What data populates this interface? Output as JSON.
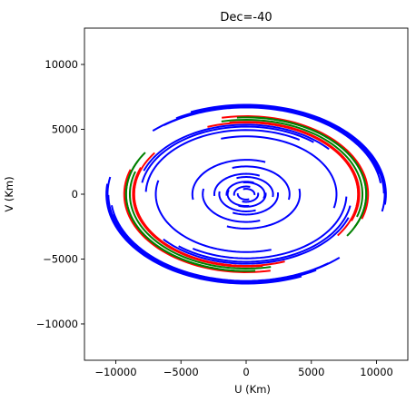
{
  "chart_data": {
    "type": "line",
    "title": "Dec=-40",
    "xlabel": "U (Km)",
    "ylabel": "V (Km)",
    "xlim": [
      -12400,
      12400
    ],
    "ylim": [
      -12800,
      12800
    ],
    "xticks": [
      -10000,
      -5000,
      0,
      5000,
      10000
    ],
    "xtick_labels": [
      "−10000",
      "−5000",
      "0",
      "5000",
      "10000"
    ],
    "yticks": [
      -10000,
      -5000,
      0,
      5000,
      10000
    ],
    "ytick_labels": [
      "−10000",
      "−5000",
      "0",
      "5000",
      "10000"
    ],
    "grid": false,
    "legend": "none",
    "colors": {
      "blue": "#0000ff",
      "red": "#ff0000",
      "green": "#008000",
      "axes": "#000000",
      "background": "#ffffff"
    },
    "projection": {
      "sin_dec": -0.643,
      "hour_angle_range_deg": [
        -60,
        60
      ]
    },
    "series": [
      {
        "color": "blue",
        "baselines": [
          [
            10000,
            3000,
            0
          ],
          [
            9600,
            4000,
            0
          ],
          [
            9200,
            5200,
            0
          ],
          [
            8600,
            6400,
            0
          ],
          [
            8000,
            7000,
            0
          ],
          [
            8200,
            -1500,
            0
          ],
          [
            7600,
            -2800,
            0
          ],
          [
            6800,
            -3600,
            0
          ],
          [
            5000,
            4800,
            0
          ],
          [
            3200,
            -2600,
            0
          ],
          [
            2500,
            2200,
            0
          ],
          [
            2000,
            -1400,
            0
          ],
          [
            1600,
            1300,
            0
          ],
          [
            1200,
            -900,
            0
          ],
          [
            900,
            1100,
            0
          ],
          [
            700,
            -600,
            0
          ],
          [
            500,
            400,
            0
          ]
        ]
      },
      {
        "color": "red",
        "baselines": [
          [
            6200,
            7000,
            0
          ],
          [
            6600,
            5500,
            0
          ],
          [
            3600,
            7800,
            0
          ],
          [
            5400,
            6800,
            0
          ]
        ]
      },
      {
        "color": "green",
        "baselines": [
          [
            5200,
            7600,
            0
          ],
          [
            4200,
            8200,
            0
          ],
          [
            6000,
            6600,
            0
          ]
        ]
      }
    ]
  }
}
